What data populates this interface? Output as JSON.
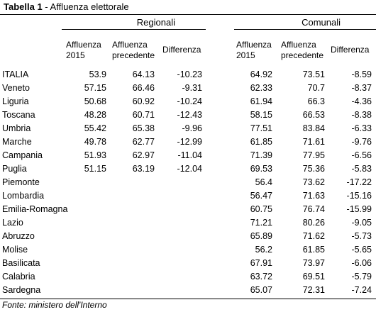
{
  "title": {
    "bold": "Tabella 1",
    "rest": " - Affluenza elettorale"
  },
  "groups": {
    "regionali": "Regionali",
    "comunali": "Comunali"
  },
  "headers": {
    "reg_affluenza_2015": [
      "Affluenza",
      "2015"
    ],
    "reg_affluenza_precedente": [
      "Affluenza",
      "precedente"
    ],
    "reg_differenza": "Differenza",
    "com_affluenza_2015": [
      "Affluenza",
      "2015"
    ],
    "com_affluenza_precedente": [
      "Affluenza",
      "precedente"
    ],
    "com_differenza": "Differenza"
  },
  "rows": [
    {
      "name": "ITALIA",
      "r1": "53.9",
      "r2": "64.13",
      "r3": "-10.23",
      "c1": "64.92",
      "c2": "73.51",
      "c3": "-8.59"
    },
    {
      "name": "Veneto",
      "r1": "57.15",
      "r2": "66.46",
      "r3": "-9.31",
      "c1": "62.33",
      "c2": "70.7",
      "c3": "-8.37"
    },
    {
      "name": "Liguria",
      "r1": "50.68",
      "r2": "60.92",
      "r3": "-10.24",
      "c1": "61.94",
      "c2": "66.3",
      "c3": "-4.36"
    },
    {
      "name": "Toscana",
      "r1": "48.28",
      "r2": "60.71",
      "r3": "-12.43",
      "c1": "58.15",
      "c2": "66.53",
      "c3": "-8.38"
    },
    {
      "name": "Umbria",
      "r1": "55.42",
      "r2": "65.38",
      "r3": "-9.96",
      "c1": "77.51",
      "c2": "83.84",
      "c3": "-6.33"
    },
    {
      "name": "Marche",
      "r1": "49.78",
      "r2": "62.77",
      "r3": "-12.99",
      "c1": "61.85",
      "c2": "71.61",
      "c3": "-9.76"
    },
    {
      "name": "Campania",
      "r1": "51.93",
      "r2": "62.97",
      "r3": "-11.04",
      "c1": "71.39",
      "c2": "77.95",
      "c3": "-6.56"
    },
    {
      "name": "Puglia",
      "r1": "51.15",
      "r2": "63.19",
      "r3": "-12.04",
      "c1": "69.53",
      "c2": "75.36",
      "c3": "-5.83"
    },
    {
      "name": "Piemonte",
      "r1": "",
      "r2": "",
      "r3": "",
      "c1": "56.4",
      "c2": "73.62",
      "c3": "-17.22"
    },
    {
      "name": "Lombardia",
      "r1": "",
      "r2": "",
      "r3": "",
      "c1": "56.47",
      "c2": "71.63",
      "c3": "-15.16"
    },
    {
      "name": "Emilia-Romagna",
      "r1": "",
      "r2": "",
      "r3": "",
      "c1": "60.75",
      "c2": "76.74",
      "c3": "-15.99"
    },
    {
      "name": "Lazio",
      "r1": "",
      "r2": "",
      "r3": "",
      "c1": "71.21",
      "c2": "80.26",
      "c3": "-9.05"
    },
    {
      "name": "Abruzzo",
      "r1": "",
      "r2": "",
      "r3": "",
      "c1": "65.89",
      "c2": "71.62",
      "c3": "-5.73"
    },
    {
      "name": "Molise",
      "r1": "",
      "r2": "",
      "r3": "",
      "c1": "56.2",
      "c2": "61.85",
      "c3": "-5.65"
    },
    {
      "name": "Basilicata",
      "r1": "",
      "r2": "",
      "r3": "",
      "c1": "67.91",
      "c2": "73.97",
      "c3": "-6.06"
    },
    {
      "name": "Calabria",
      "r1": "",
      "r2": "",
      "r3": "",
      "c1": "63.72",
      "c2": "69.51",
      "c3": "-5.79"
    },
    {
      "name": "Sardegna",
      "r1": "",
      "r2": "",
      "r3": "",
      "c1": "65.07",
      "c2": "72.31",
      "c3": "-7.24"
    }
  ],
  "footer": "Fonte: ministero dell'Interno"
}
